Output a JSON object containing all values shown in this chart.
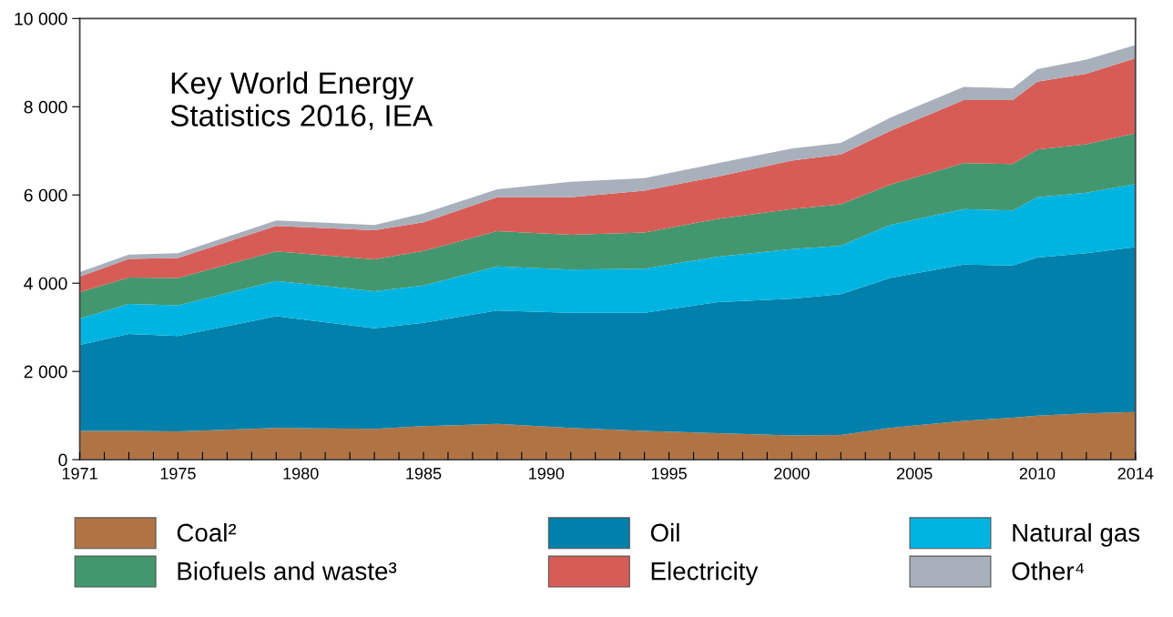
{
  "chart_data": {
    "type": "area",
    "stacked": true,
    "x": [
      1971,
      1973,
      1975,
      1979,
      1983,
      1985,
      1988,
      1991,
      1994,
      1997,
      2000,
      2002,
      2004,
      2007,
      2009,
      2010,
      2012,
      2014
    ],
    "series": [
      {
        "name": "Coal²",
        "color": "#b07444",
        "values": [
          650,
          650,
          640,
          720,
          700,
          760,
          810,
          720,
          650,
          600,
          550,
          560,
          720,
          880,
          950,
          1000,
          1050,
          1080
        ]
      },
      {
        "name": "Oil",
        "color": "#0080aa",
        "values": [
          1950,
          2200,
          2160,
          2530,
          2280,
          2340,
          2570,
          2610,
          2680,
          2970,
          3100,
          3190,
          3400,
          3540,
          3450,
          3580,
          3630,
          3740
        ]
      },
      {
        "name": "Natural gas",
        "color": "#00b4e2",
        "values": [
          600,
          680,
          700,
          800,
          840,
          850,
          1000,
          980,
          1000,
          1030,
          1120,
          1100,
          1200,
          1260,
          1250,
          1370,
          1370,
          1430
        ]
      },
      {
        "name": "Biofuels and waste³",
        "color": "#43976f",
        "values": [
          600,
          600,
          620,
          670,
          720,
          780,
          800,
          790,
          820,
          860,
          910,
          940,
          910,
          1040,
          1050,
          1080,
          1100,
          1150
        ]
      },
      {
        "name": "Electricity",
        "color": "#d85c56",
        "values": [
          350,
          420,
          450,
          580,
          660,
          650,
          770,
          850,
          950,
          960,
          1100,
          1130,
          1220,
          1430,
          1450,
          1540,
          1600,
          1700
        ]
      },
      {
        "name": "Other⁴",
        "color": "#a8b0bb",
        "values": [
          100,
          100,
          110,
          120,
          120,
          200,
          180,
          350,
          280,
          300,
          270,
          260,
          300,
          300,
          270,
          280,
          320,
          300
        ]
      }
    ],
    "xlim": [
      1971,
      2014
    ],
    "xticks": [
      1971,
      {
        "value": 1972,
        "label": null
      },
      {
        "value": 1973,
        "label": null
      },
      {
        "value": 1974,
        "label": null
      },
      1975,
      {
        "value": 1976,
        "label": null
      },
      {
        "value": 1977,
        "label": null
      },
      {
        "value": 1978,
        "label": null
      },
      {
        "value": 1979,
        "label": null
      },
      1980,
      {
        "value": 1981,
        "label": null
      },
      {
        "value": 1982,
        "label": null
      },
      {
        "value": 1983,
        "label": null
      },
      {
        "value": 1984,
        "label": null
      },
      1985,
      {
        "value": 1986,
        "label": null
      },
      {
        "value": 1987,
        "label": null
      },
      {
        "value": 1988,
        "label": null
      },
      {
        "value": 1989,
        "label": null
      },
      1990,
      {
        "value": 1991,
        "label": null
      },
      {
        "value": 1992,
        "label": null
      },
      {
        "value": 1993,
        "label": null
      },
      {
        "value": 1994,
        "label": null
      },
      1995,
      {
        "value": 1996,
        "label": null
      },
      {
        "value": 1997,
        "label": null
      },
      {
        "value": 1998,
        "label": null
      },
      {
        "value": 1999,
        "label": null
      },
      2000,
      {
        "value": 2001,
        "label": null
      },
      {
        "value": 2002,
        "label": null
      },
      {
        "value": 2003,
        "label": null
      },
      {
        "value": 2004,
        "label": null
      },
      2005,
      {
        "value": 2006,
        "label": null
      },
      {
        "value": 2007,
        "label": null
      },
      {
        "value": 2008,
        "label": null
      },
      {
        "value": 2009,
        "label": null
      },
      2010,
      {
        "value": 2011,
        "label": null
      },
      {
        "value": 2012,
        "label": null
      },
      {
        "value": 2013,
        "label": null
      },
      2014
    ],
    "ylim": [
      0,
      10000
    ],
    "yticks": [
      0,
      {
        "value": 2000,
        "label": "2 000"
      },
      {
        "value": 4000,
        "label": "4 000"
      },
      {
        "value": 6000,
        "label": "6 000"
      },
      {
        "value": 8000,
        "label": "8 000"
      },
      {
        "value": 10000,
        "label": "10 000"
      }
    ],
    "annotations": [
      "Key World Energy\nStatistics 2016, IEA"
    ],
    "legend": "bottom",
    "grid": false
  }
}
